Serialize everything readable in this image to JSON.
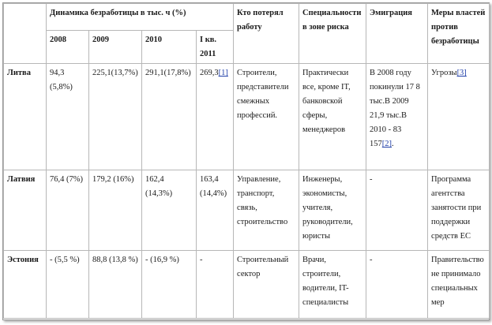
{
  "headers": {
    "dynamics": "Динамика безработицы в тыс. ч (%)",
    "who_lost": "Кто потерял работу",
    "risk": "Специальности в зоне риска",
    "emigration": "Эмиграция",
    "measures": "Меры властей против безработицы"
  },
  "years": [
    "2008",
    "2009",
    "2010",
    "I кв. 2011"
  ],
  "rows": [
    {
      "country": "Литва",
      "y2008": "94,3 (5,8%)",
      "y2009": "225,1(13,7%)",
      "y2010": "291,1(17,8%)",
      "q2011": "269,3",
      "q2011_ref": "[1]",
      "who_lost": "Строители, представители смежных профессий.",
      "risk": "Практически все, кроме IT, банковской сферы, менеджеров",
      "emigration": "В 2008 году покинули 17 8 тыс.В 2009 21,9 тыс.В 2010 - 83 157",
      "emigration_ref": "[2]",
      "emigration_tail": ".",
      "measures": "Угрозы",
      "measures_ref": "[3]"
    },
    {
      "country": "Латвия",
      "y2008": "76,4 (7%)",
      "y2009": "179,2 (16%)",
      "y2010": "162,4 (14,3%)",
      "q2011": "163,4 (14,4%)",
      "who_lost": "Управление, транспорт, связь, строительство",
      "risk": "Инженеры, экономисты, учителя, руководители, юристы",
      "emigration": "-",
      "measures": "Программа агентства занятости при поддержки средств ЕС"
    },
    {
      "country": "Эстония",
      "y2008": "- (5,5 %)",
      "y2009": "88,8 (13,8 %)",
      "y2010": "- (16,9 %)",
      "q2011": "-",
      "who_lost": "Строительный сектор",
      "risk": "Врачи, строители, водители, IT-специалисты",
      "emigration": "-",
      "measures": "Правительство не принимало специальных мер"
    }
  ]
}
